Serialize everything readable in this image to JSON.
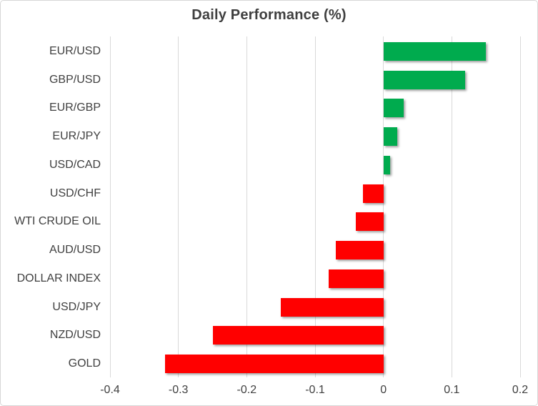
{
  "chart_data": {
    "type": "bar",
    "orientation": "horizontal",
    "title": "Daily Performance (%)",
    "categories": [
      "EUR/USD",
      "GBP/USD",
      "EUR/GBP",
      "EUR/JPY",
      "USD/CAD",
      "USD/CHF",
      "WTI CRUDE OIL",
      "AUD/USD",
      "DOLLAR INDEX",
      "USD/JPY",
      "NZD/USD",
      "GOLD"
    ],
    "values": [
      0.15,
      0.12,
      0.03,
      0.02,
      0.01,
      -0.03,
      -0.04,
      -0.07,
      -0.08,
      -0.15,
      -0.25,
      -0.32
    ],
    "xlim": [
      -0.4,
      0.2
    ],
    "x_ticks": [
      -0.4,
      -0.3,
      -0.2,
      -0.1,
      0,
      0.1,
      0.2
    ],
    "x_tick_labels": [
      "-0.4",
      "-0.3",
      "-0.2",
      "-0.1",
      "0",
      "0.1",
      "0.2"
    ],
    "grid": true,
    "legend": false,
    "colors": {
      "positive_bar": "#00ab4e",
      "negative_bar": "#ff0000",
      "gridline": "#d9d9d9",
      "text": "#404040",
      "title_text": "#3f3f3f",
      "frame_border": "#d7d7d7",
      "background": "#ffffff"
    }
  }
}
